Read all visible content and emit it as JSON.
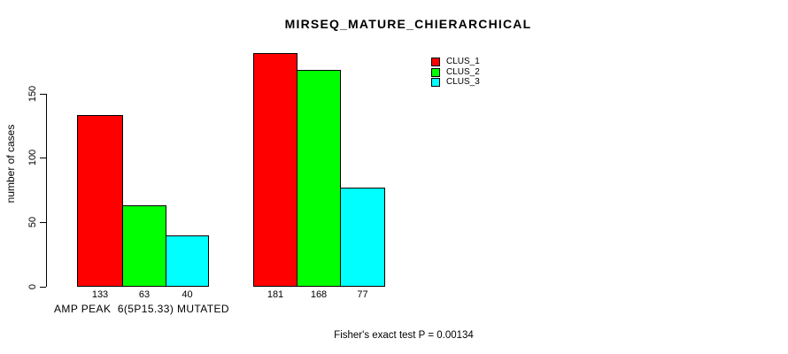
{
  "chart_data": {
    "type": "bar",
    "title": "MIRSEQ_MATURE_CHIERARCHICAL",
    "ylabel": "number of cases",
    "xlabel": "AMP PEAK  6(5P15.33) MUTATED",
    "categories": [
      "AMP PEAK  6(5P15.33) MUTATED",
      ""
    ],
    "series": [
      {
        "name": "CLUS_1",
        "color": "#FF0000",
        "values": [
          133,
          181
        ]
      },
      {
        "name": "CLUS_2",
        "color": "#00FF00",
        "values": [
          63,
          168
        ]
      },
      {
        "name": "CLUS_3",
        "color": "#00FFFF",
        "values": [
          40,
          77
        ]
      }
    ],
    "yticks": [
      0,
      50,
      100,
      150
    ],
    "ylim": [
      0,
      190
    ],
    "grid": false,
    "bar_value_labels": true,
    "legend_position": "top-right-inside",
    "annotation": "Fisher's exact test P = 0.00134"
  },
  "colors": {
    "axis": "#000000",
    "background": "#FFFFFF",
    "clus_1": "#FF0000",
    "clus_2": "#00FF00",
    "clus_3": "#00FFFF"
  }
}
